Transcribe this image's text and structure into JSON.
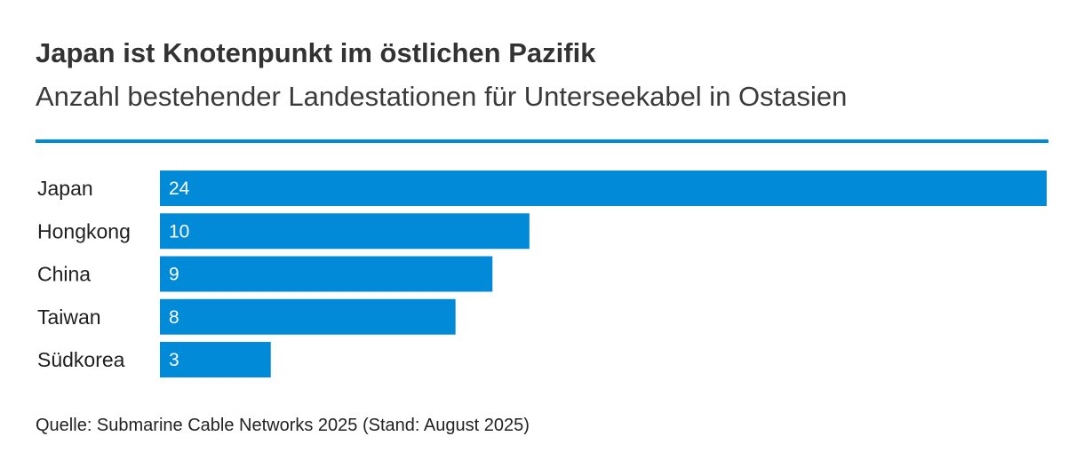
{
  "colors": {
    "bar": "#008ad7",
    "rule": "#008ad7"
  },
  "chart_data": {
    "type": "bar",
    "orientation": "horizontal",
    "title": "Japan ist Knotenpunkt im östlichen Pazifik",
    "subtitle": "Anzahl bestehender Landestationen für Unterseekabel in Ostasien",
    "categories": [
      "Japan",
      "Hongkong",
      "China",
      "Taiwan",
      "Südkorea"
    ],
    "values": [
      24,
      10,
      9,
      8,
      3
    ],
    "value_labels": [
      "24",
      "10",
      "9",
      "8",
      "3"
    ],
    "xlim": [
      0,
      24
    ],
    "xlabel": "",
    "ylabel": "",
    "grid": false,
    "legend": "none",
    "source": "Quelle: Submarine Cable Networks 2025 (Stand: August 2025)"
  }
}
